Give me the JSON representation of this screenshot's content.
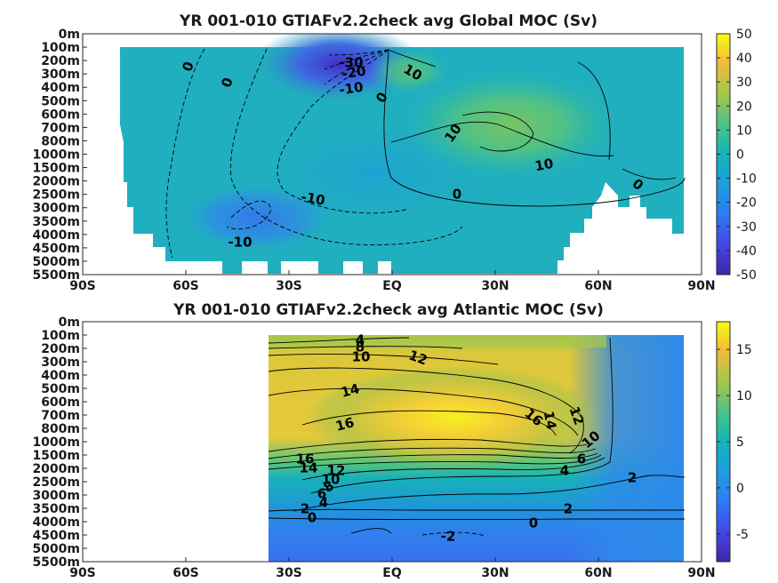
{
  "chart_data": [
    {
      "type": "heatmap",
      "title": "YR 001-010 GTIAFv2.2check avg  Global MOC (Sv)",
      "x_ticks": [
        "90S",
        "60S",
        "30S",
        "EQ",
        "30N",
        "60N",
        "90N"
      ],
      "y_ticks": [
        "0m",
        "100m",
        "200m",
        "300m",
        "400m",
        "500m",
        "600m",
        "700m",
        "800m",
        "1000m",
        "1500m",
        "2000m",
        "2500m",
        "3000m",
        "3500m",
        "4000m",
        "4500m",
        "5000m",
        "5500m"
      ],
      "colorbar_ticks": [
        50,
        40,
        30,
        20,
        10,
        0,
        -10,
        -20,
        -30,
        -40,
        -50
      ],
      "clim": [
        -50,
        50
      ],
      "contour_labels": [
        "0",
        "0",
        "-30",
        "-20",
        "-10",
        "10",
        "0",
        "10",
        "10",
        "0",
        "-10",
        "0",
        "-10"
      ]
    },
    {
      "type": "heatmap",
      "title": "YR 001-010 GTIAFv2.2check avg  Atlantic MOC (Sv)",
      "x_ticks": [
        "90S",
        "60S",
        "30S",
        "EQ",
        "30N",
        "60N",
        "90N"
      ],
      "y_ticks": [
        "0m",
        "100m",
        "200m",
        "300m",
        "400m",
        "500m",
        "600m",
        "700m",
        "800m",
        "1000m",
        "1500m",
        "2000m",
        "2500m",
        "3000m",
        "3500m",
        "4000m",
        "4500m",
        "5000m",
        "5500m"
      ],
      "colorbar_ticks": [
        15,
        10,
        5,
        0,
        -5
      ],
      "clim": [
        -8,
        18
      ],
      "contour_labels": [
        "4",
        "8",
        "10",
        "12",
        "14",
        "16",
        "16",
        "14",
        "12",
        "10",
        "16",
        "14",
        "12",
        "10",
        "8",
        "6",
        "4",
        "2",
        "0",
        "6",
        "4",
        "2",
        "2",
        "0",
        "-2"
      ]
    }
  ]
}
